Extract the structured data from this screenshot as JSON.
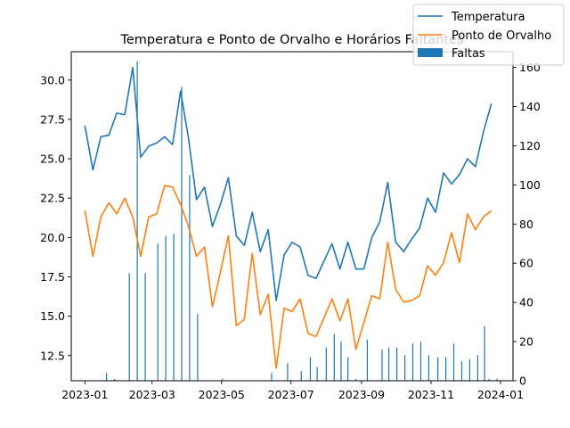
{
  "chart_data": {
    "type": "line",
    "title": "Temperatura e Ponto de Orvalho e Horários Faltantes",
    "x_tick_labels": [
      "2023-01",
      "2023-03",
      "2023-05",
      "2023-07",
      "2023-09",
      "2023-11",
      "2024-01"
    ],
    "x_tick_dates": [
      "2023-01-01",
      "2023-03-01",
      "2023-05-01",
      "2023-07-01",
      "2023-09-01",
      "2023-11-01",
      "2024-01-01"
    ],
    "xlim": [
      "2022-12-20",
      "2024-01-12"
    ],
    "ylim_left": [
      10.9,
      31.8
    ],
    "ylim_right": [
      0,
      168
    ],
    "left_ticks": [
      "12.5",
      "15.0",
      "17.5",
      "20.0",
      "22.5",
      "25.0",
      "27.5",
      "30.0"
    ],
    "right_ticks": [
      "0",
      "20",
      "40",
      "60",
      "80",
      "100",
      "120",
      "140",
      "160"
    ],
    "dates": [
      "2023-01-01",
      "2023-01-08",
      "2023-01-15",
      "2023-01-22",
      "2023-01-29",
      "2023-02-05",
      "2023-02-12",
      "2023-02-19",
      "2023-02-26",
      "2023-03-05",
      "2023-03-12",
      "2023-03-19",
      "2023-03-26",
      "2023-04-02",
      "2023-04-09",
      "2023-04-16",
      "2023-04-23",
      "2023-04-30",
      "2023-05-07",
      "2023-05-14",
      "2023-05-21",
      "2023-05-28",
      "2023-06-04",
      "2023-06-11",
      "2023-06-18",
      "2023-06-25",
      "2023-07-02",
      "2023-07-09",
      "2023-07-16",
      "2023-07-23",
      "2023-07-30",
      "2023-08-06",
      "2023-08-13",
      "2023-08-20",
      "2023-08-27",
      "2023-09-03",
      "2023-09-10",
      "2023-09-17",
      "2023-09-24",
      "2023-10-01",
      "2023-10-08",
      "2023-10-15",
      "2023-10-22",
      "2023-10-29",
      "2023-11-05",
      "2023-11-12",
      "2023-11-19",
      "2023-11-26",
      "2023-12-03",
      "2023-12-10",
      "2023-12-17",
      "2023-12-24"
    ],
    "series": [
      {
        "name": "Temperatura",
        "color": "#1f77b4",
        "axis": "left",
        "values": [
          27.1,
          24.3,
          26.4,
          26.5,
          27.9,
          27.8,
          30.8,
          25.1,
          25.8,
          26.0,
          26.4,
          25.9,
          29.3,
          26.3,
          22.4,
          23.2,
          20.7,
          22.1,
          23.8,
          20.1,
          19.5,
          21.6,
          19.1,
          20.5,
          16.0,
          18.9,
          19.7,
          19.4,
          17.6,
          17.4,
          18.5,
          19.6,
          18.0,
          19.7,
          18.0,
          18.0,
          20.0,
          21.0,
          23.5,
          19.7,
          19.1,
          19.9,
          20.6,
          22.5,
          21.6,
          24.1,
          23.4,
          24.0,
          25.0,
          24.5,
          26.7,
          28.5
        ]
      },
      {
        "name": "Ponto de Orvalho",
        "color": "#ff7f0e",
        "axis": "left",
        "values": [
          21.7,
          18.8,
          21.3,
          22.2,
          21.5,
          22.5,
          21.3,
          18.8,
          21.3,
          21.5,
          23.3,
          23.2,
          22.1,
          20.7,
          18.8,
          19.4,
          15.6,
          17.8,
          20.1,
          14.4,
          14.8,
          19.0,
          15.1,
          16.4,
          11.7,
          15.5,
          15.3,
          16.1,
          13.9,
          13.7,
          14.9,
          16.1,
          14.7,
          16.1,
          12.9,
          14.6,
          16.3,
          16.1,
          19.7,
          16.7,
          15.9,
          16.0,
          16.3,
          18.2,
          17.6,
          18.4,
          20.3,
          18.4,
          21.5,
          20.5,
          21.3,
          21.7
        ]
      }
    ],
    "bars": {
      "name": "Faltas",
      "color": "#1f77b4",
      "axis": "right",
      "dates": [
        "2023-01-20",
        "2023-01-27",
        "2023-02-09",
        "2023-02-16",
        "2023-02-23",
        "2023-03-06",
        "2023-03-13",
        "2023-03-20",
        "2023-03-27",
        "2023-04-03",
        "2023-04-10",
        "2023-05-02",
        "2023-06-14",
        "2023-06-28",
        "2023-07-10",
        "2023-07-18",
        "2023-07-24",
        "2023-08-01",
        "2023-08-08",
        "2023-08-14",
        "2023-08-20",
        "2023-08-27",
        "2023-09-06",
        "2023-09-19",
        "2023-09-25",
        "2023-10-02",
        "2023-10-09",
        "2023-10-16",
        "2023-10-23",
        "2023-10-30",
        "2023-11-07",
        "2023-11-14",
        "2023-11-21",
        "2023-11-28",
        "2023-12-05",
        "2023-12-12",
        "2023-12-18",
        "2023-12-22",
        "2023-12-29"
      ],
      "values": [
        4,
        1,
        55,
        163,
        55,
        70,
        74,
        75,
        150,
        105,
        34,
        1,
        4,
        9,
        5,
        12,
        7,
        17,
        24,
        20,
        12,
        1,
        21,
        16,
        17,
        17,
        13,
        19,
        20,
        13,
        12,
        12,
        19,
        10,
        11,
        13,
        28,
        1,
        1
      ]
    },
    "legend": {
      "placement": "top-right",
      "entries": [
        "Temperatura",
        "Ponto de Orvalho",
        "Faltas"
      ]
    },
    "grid": false
  }
}
